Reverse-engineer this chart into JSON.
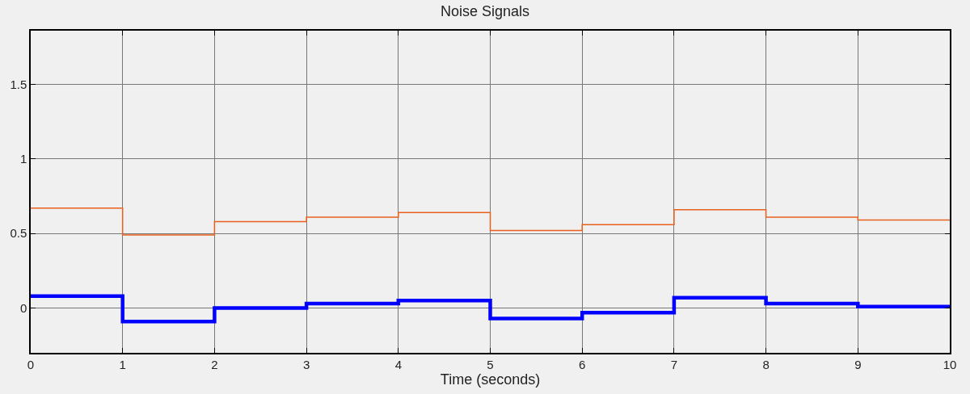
{
  "chart_data": {
    "type": "step",
    "title": "Noise Signals",
    "xlabel": "Time (seconds)",
    "x": [
      0,
      1,
      2,
      3,
      4,
      5,
      6,
      7,
      8,
      9,
      10
    ],
    "series": [
      {
        "color": "#e8601c",
        "values": [
          0.67,
          0.49,
          0.58,
          0.61,
          0.64,
          0.52,
          0.56,
          0.66,
          0.61,
          0.59,
          0.59
        ]
      },
      {
        "color": "#0000ff",
        "values": [
          0.08,
          -0.09,
          0.0,
          0.03,
          0.05,
          -0.07,
          -0.03,
          0.07,
          0.03,
          0.01,
          0.01
        ]
      }
    ],
    "xlim": [
      0,
      10
    ],
    "xticks": [
      0,
      1,
      2,
      3,
      4,
      5,
      6,
      7,
      8,
      9,
      10
    ],
    "ylim": [
      -0.3,
      1.86
    ],
    "yticks": [
      0,
      0.5,
      1,
      1.5
    ],
    "grid": true
  }
}
